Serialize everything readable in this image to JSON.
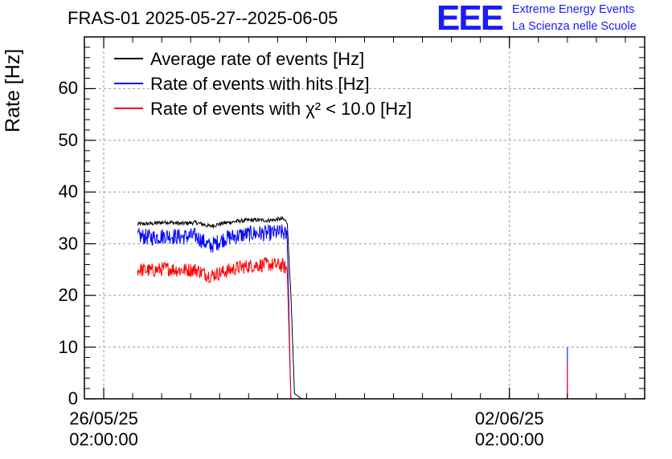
{
  "chart_data": {
    "type": "line",
    "title": "FRAS-01 2025-05-27--2025-06-05",
    "ylabel": "Rate [Hz]",
    "xlabel": "",
    "ylim": [
      0,
      70
    ],
    "yticks": [
      0,
      10,
      20,
      30,
      40,
      50,
      60
    ],
    "xlim": [
      "2025-05-25 18:00:00",
      "2025-06-04 10:00:00"
    ],
    "xticks": [
      {
        "line1": "26/05/25",
        "line2": "02:00:00",
        "x": "2025-05-26 02:00:00"
      },
      {
        "line1": "02/06/25",
        "line2": "02:00:00",
        "x": "2025-06-02 02:00:00"
      }
    ],
    "grid": true,
    "legend_position": "top-left",
    "series": [
      {
        "name": "Average rate of events [Hz]",
        "color": "#000000",
        "x": [
          "2025-05-26 16:00:00",
          "2025-05-26 22:00:00",
          "2025-05-27 04:00:00",
          "2025-05-27 10:00:00",
          "2025-05-27 16:00:00",
          "2025-05-27 22:00:00",
          "2025-05-28 04:00:00",
          "2025-05-28 10:00:00",
          "2025-05-28 16:00:00",
          "2025-05-28 22:00:00",
          "2025-05-29 04:00:00",
          "2025-05-29 06:00:00",
          "2025-05-29 07:30:00",
          "2025-05-29 09:00:00",
          "2025-05-29 12:00:00",
          "2025-06-03 20:00:00"
        ],
        "values": [
          33.8,
          33.9,
          34.2,
          33.9,
          34.1,
          33.4,
          34.0,
          34.4,
          34.6,
          34.5,
          34.8,
          34.2,
          20.0,
          1.0,
          0.0,
          0.0
        ]
      },
      {
        "name": "Rate of events with hits [Hz]",
        "color": "#0000ff",
        "noise": 1.6,
        "x": [
          "2025-05-26 16:00:00",
          "2025-05-26 22:00:00",
          "2025-05-27 04:00:00",
          "2025-05-27 10:00:00",
          "2025-05-27 16:00:00",
          "2025-05-27 22:00:00",
          "2025-05-28 04:00:00",
          "2025-05-28 10:00:00",
          "2025-05-28 16:00:00",
          "2025-05-28 22:00:00",
          "2025-05-29 04:00:00",
          "2025-05-29 06:00:00",
          "2025-05-29 07:00:00",
          "2025-05-29 07:30:00",
          "2025-06-03 01:58:00",
          "2025-06-03 02:00:00",
          "2025-06-03 02:02:00",
          "2025-06-03 20:00:00"
        ],
        "values": [
          31.5,
          31.2,
          31.6,
          31.3,
          31.5,
          29.5,
          31.0,
          31.6,
          32.0,
          32.0,
          32.2,
          31.5,
          10.0,
          0.0,
          0.0,
          10.0,
          0.0,
          0.0
        ]
      },
      {
        "name": "Rate of events with χ² < 10.0 [Hz]",
        "color": "#ff0000",
        "noise": 1.4,
        "x": [
          "2025-05-26 16:00:00",
          "2025-05-26 22:00:00",
          "2025-05-27 04:00:00",
          "2025-05-27 10:00:00",
          "2025-05-27 16:00:00",
          "2025-05-27 22:00:00",
          "2025-05-28 04:00:00",
          "2025-05-28 10:00:00",
          "2025-05-28 16:00:00",
          "2025-05-28 22:00:00",
          "2025-05-29 04:00:00",
          "2025-05-29 06:00:00",
          "2025-05-29 07:00:00",
          "2025-05-29 07:30:00",
          "2025-06-03 01:58:00",
          "2025-06-03 02:00:00",
          "2025-06-03 02:02:00",
          "2025-06-03 20:00:00"
        ],
        "values": [
          25.0,
          24.8,
          25.2,
          24.9,
          25.0,
          23.8,
          24.6,
          25.4,
          25.8,
          26.0,
          25.8,
          25.0,
          8.0,
          0.0,
          0.0,
          6.5,
          0.0,
          0.0
        ]
      }
    ]
  },
  "branding": {
    "logo": "EEE",
    "line1": "Extreme Energy Events",
    "line2": "La Scienza nelle Scuole"
  }
}
